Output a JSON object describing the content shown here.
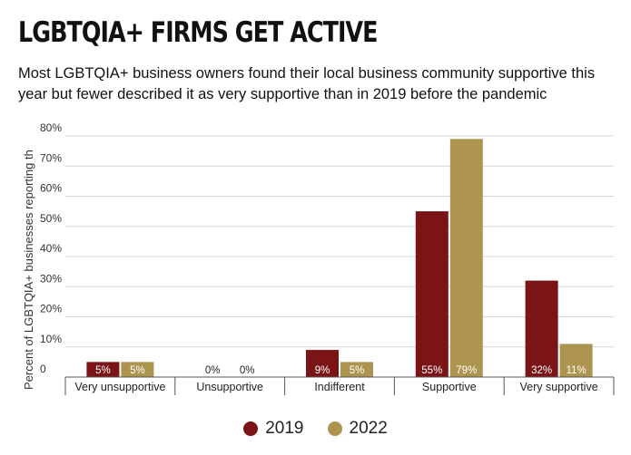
{
  "title": "LGBTQIA+ FIRMS GET ACTIVE",
  "subtitle": "Most LGBTQIA+ business owners found their local business community supportive this year but fewer described it as very supportive than in 2019 before the pandemic",
  "colors": {
    "s2019": "#7a1417",
    "s2022": "#ad944f",
    "grid": "#d8d8d8",
    "axis": "#555555"
  },
  "chart_data": {
    "type": "bar",
    "title": "LGBTQIA+ FIRMS GET ACTIVE",
    "xlabel": "",
    "ylabel": "Percent of LGBTQIA+ businesses reporting th",
    "ylim": [
      0,
      80
    ],
    "yticks": [
      0,
      10,
      20,
      30,
      40,
      50,
      60,
      70,
      80
    ],
    "ytick_labels": [
      "0",
      "10%",
      "20%",
      "30%",
      "40%",
      "50%",
      "60%",
      "70%",
      "80%"
    ],
    "categories": [
      "Very unsupportive",
      "Unsupportive",
      "Indifferent",
      "Supportive",
      "Very supportive"
    ],
    "series": [
      {
        "name": "2019",
        "values": [
          5,
          0,
          9,
          55,
          32
        ],
        "labels": [
          "5%",
          "0%",
          "9%",
          "55%",
          "32%"
        ]
      },
      {
        "name": "2022",
        "values": [
          5,
          0,
          5,
          79,
          11
        ],
        "labels": [
          "5%",
          "0%",
          "5%",
          "79%",
          "11%"
        ]
      }
    ],
    "legend_position": "bottom"
  }
}
